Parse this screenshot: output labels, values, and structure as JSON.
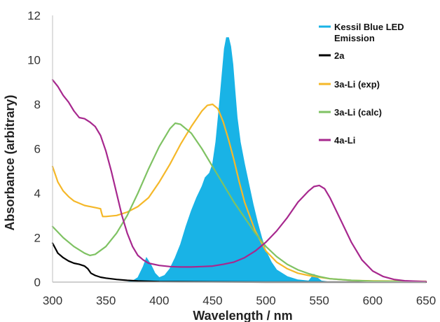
{
  "chart_data": {
    "type": "line",
    "title": "",
    "xlabel": "Wavelength / nm",
    "ylabel": "Absorbance (arbitrary)",
    "xlim": [
      300,
      650
    ],
    "ylim": [
      0,
      12
    ],
    "xticks": [
      "300",
      "350",
      "400",
      "450",
      "500",
      "550",
      "600",
      "650"
    ],
    "yticks": [
      "0",
      "2",
      "4",
      "6",
      "8",
      "10",
      "12"
    ],
    "grid": false,
    "legend_position": "right",
    "series": [
      {
        "name": "Kessil Blue LED Emission",
        "legend_lines": [
          "Kessil Blue LED",
          "Emission"
        ],
        "color": "#19b3e6",
        "style": "filled-area",
        "x": [
          300,
          370,
          375,
          380,
          385,
          388,
          392,
          396,
          400,
          405,
          410,
          415,
          420,
          425,
          430,
          435,
          440,
          443,
          447,
          450,
          453,
          456,
          459,
          461,
          463,
          465,
          467,
          469,
          471,
          473,
          476,
          480,
          484,
          488,
          492,
          496,
          500,
          505,
          510,
          520,
          530,
          540,
          545,
          548,
          552,
          560,
          600,
          650
        ],
        "y": [
          0,
          0,
          0.05,
          0.2,
          0.7,
          1.1,
          0.8,
          0.4,
          0.2,
          0.3,
          0.6,
          1.1,
          1.7,
          2.5,
          3.2,
          3.8,
          4.3,
          4.7,
          4.9,
          5.3,
          6.3,
          7.8,
          9.4,
          10.5,
          11.0,
          11.0,
          10.6,
          9.8,
          8.6,
          7.4,
          6.3,
          5.3,
          4.4,
          3.5,
          2.7,
          2.0,
          1.4,
          0.9,
          0.55,
          0.25,
          0.1,
          0.05,
          0.35,
          0.2,
          0.05,
          0,
          0,
          0
        ]
      },
      {
        "name": "2a",
        "color": "#000000",
        "x": [
          300,
          305,
          310,
          315,
          320,
          325,
          330,
          333,
          336,
          340,
          345,
          350,
          360,
          370,
          380,
          400,
          450,
          500,
          650
        ],
        "y": [
          1.75,
          1.3,
          1.1,
          0.95,
          0.85,
          0.8,
          0.72,
          0.6,
          0.4,
          0.3,
          0.22,
          0.18,
          0.12,
          0.08,
          0.05,
          0.02,
          0.01,
          0.0,
          0.0
        ]
      },
      {
        "name": "3a-Li (exp)",
        "color": "#f5b829",
        "x": [
          300,
          305,
          310,
          315,
          320,
          330,
          340,
          345,
          346,
          347,
          350,
          360,
          370,
          380,
          390,
          400,
          410,
          420,
          430,
          440,
          445,
          450,
          455,
          460,
          465,
          470,
          475,
          480,
          490,
          500,
          510,
          520,
          530,
          540,
          550,
          560,
          580,
          600,
          650
        ],
        "y": [
          5.2,
          4.5,
          4.1,
          3.85,
          3.65,
          3.45,
          3.35,
          3.3,
          3.1,
          2.95,
          2.95,
          3.0,
          3.15,
          3.4,
          3.8,
          4.5,
          5.3,
          6.2,
          7.0,
          7.7,
          7.95,
          8.0,
          7.8,
          7.2,
          6.4,
          5.5,
          4.5,
          3.6,
          2.3,
          1.4,
          0.9,
          0.6,
          0.4,
          0.3,
          0.22,
          0.15,
          0.08,
          0.05,
          0.03
        ]
      },
      {
        "name": "3a-Li (calc)",
        "color": "#7fc263",
        "x": [
          300,
          310,
          320,
          330,
          335,
          340,
          350,
          360,
          370,
          380,
          390,
          400,
          410,
          415,
          420,
          430,
          440,
          450,
          460,
          470,
          480,
          490,
          500,
          510,
          520,
          530,
          540,
          550,
          560,
          580,
          600,
          650
        ],
        "y": [
          2.5,
          2.0,
          1.6,
          1.3,
          1.2,
          1.25,
          1.6,
          2.2,
          3.0,
          4.0,
          5.1,
          6.1,
          6.9,
          7.15,
          7.1,
          6.7,
          6.0,
          5.2,
          4.4,
          3.6,
          2.9,
          2.2,
          1.6,
          1.15,
          0.8,
          0.55,
          0.38,
          0.25,
          0.15,
          0.08,
          0.04,
          0.02
        ]
      },
      {
        "name": "4a-Li",
        "color": "#a7288e",
        "x": [
          300,
          305,
          310,
          315,
          320,
          325,
          330,
          335,
          340,
          345,
          350,
          355,
          360,
          365,
          370,
          375,
          380,
          385,
          390,
          400,
          410,
          420,
          430,
          440,
          450,
          460,
          470,
          480,
          490,
          500,
          510,
          520,
          530,
          540,
          545,
          550,
          555,
          560,
          570,
          580,
          590,
          600,
          610,
          620,
          630,
          650
        ],
        "y": [
          9.1,
          8.8,
          8.4,
          8.1,
          7.7,
          7.4,
          7.35,
          7.2,
          7.0,
          6.6,
          5.9,
          5.0,
          4.0,
          3.0,
          2.2,
          1.6,
          1.2,
          1.0,
          0.85,
          0.75,
          0.7,
          0.68,
          0.68,
          0.7,
          0.72,
          0.8,
          0.9,
          1.1,
          1.4,
          1.8,
          2.3,
          2.9,
          3.6,
          4.1,
          4.3,
          4.35,
          4.2,
          3.8,
          2.8,
          1.8,
          1.0,
          0.5,
          0.25,
          0.12,
          0.06,
          0.02
        ]
      }
    ]
  }
}
